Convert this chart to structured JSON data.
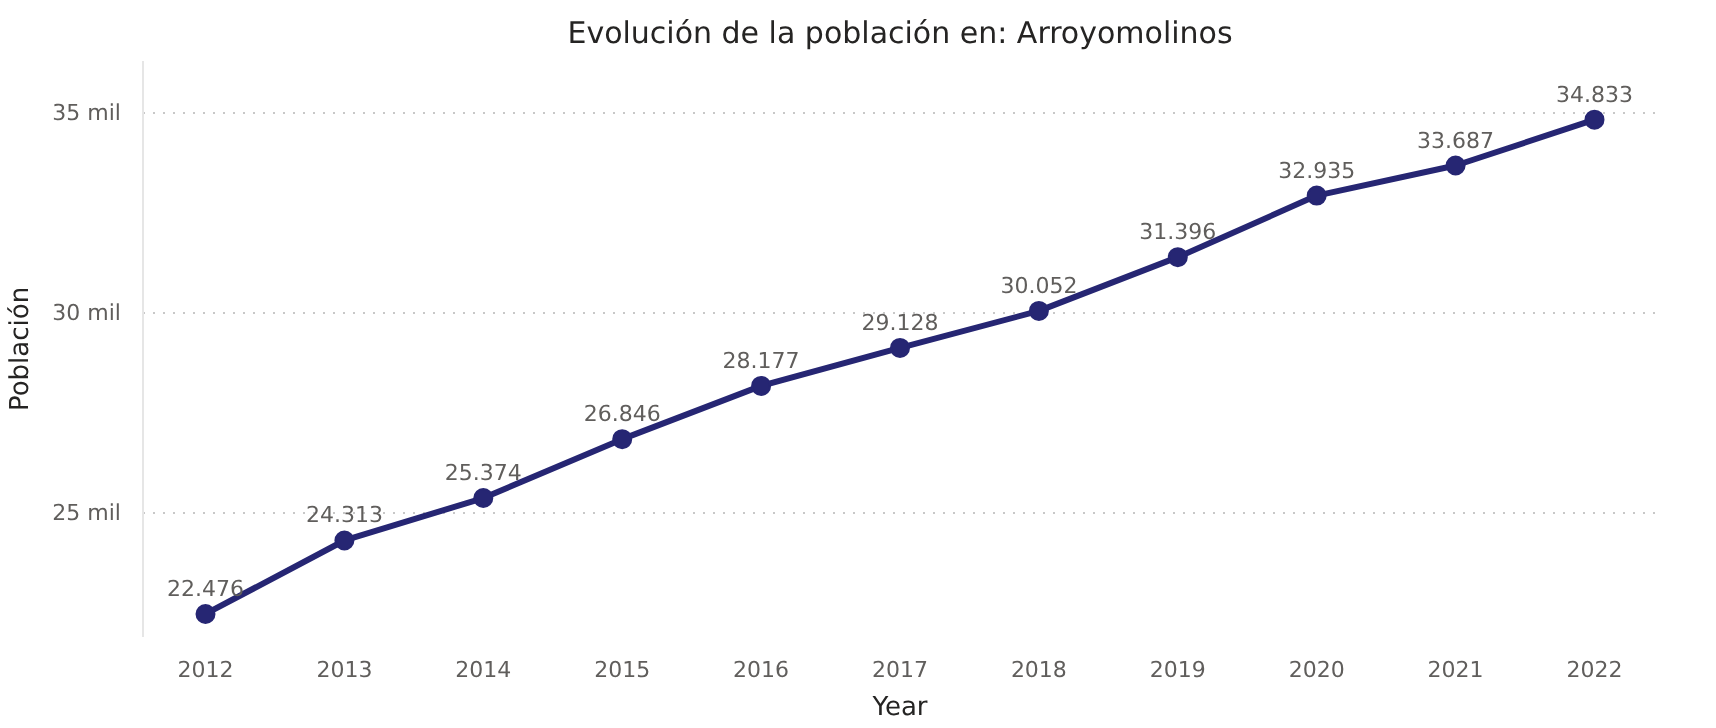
{
  "chart_data": {
    "type": "line",
    "title": "Evolución de la población en: Arroyomolinos",
    "xlabel": "Year",
    "ylabel": "Población",
    "categories": [
      "2012",
      "2013",
      "2014",
      "2015",
      "2016",
      "2017",
      "2018",
      "2019",
      "2020",
      "2021",
      "2022"
    ],
    "series": [
      {
        "color": "#262673",
        "values": [
          22.476,
          24.313,
          25.374,
          26.846,
          28.177,
          29.128,
          30.052,
          31.396,
          32.935,
          33.687,
          34.833
        ]
      }
    ],
    "data_labels": true,
    "ylim": [
      21.9,
      36.3
    ],
    "yticks": [
      {
        "value": 25,
        "label": "25 mil"
      },
      {
        "value": 30,
        "label": "30 mil"
      },
      {
        "value": 35,
        "label": "35 mil"
      }
    ],
    "grid": "y",
    "marker": "circle",
    "line_style": "solid"
  }
}
